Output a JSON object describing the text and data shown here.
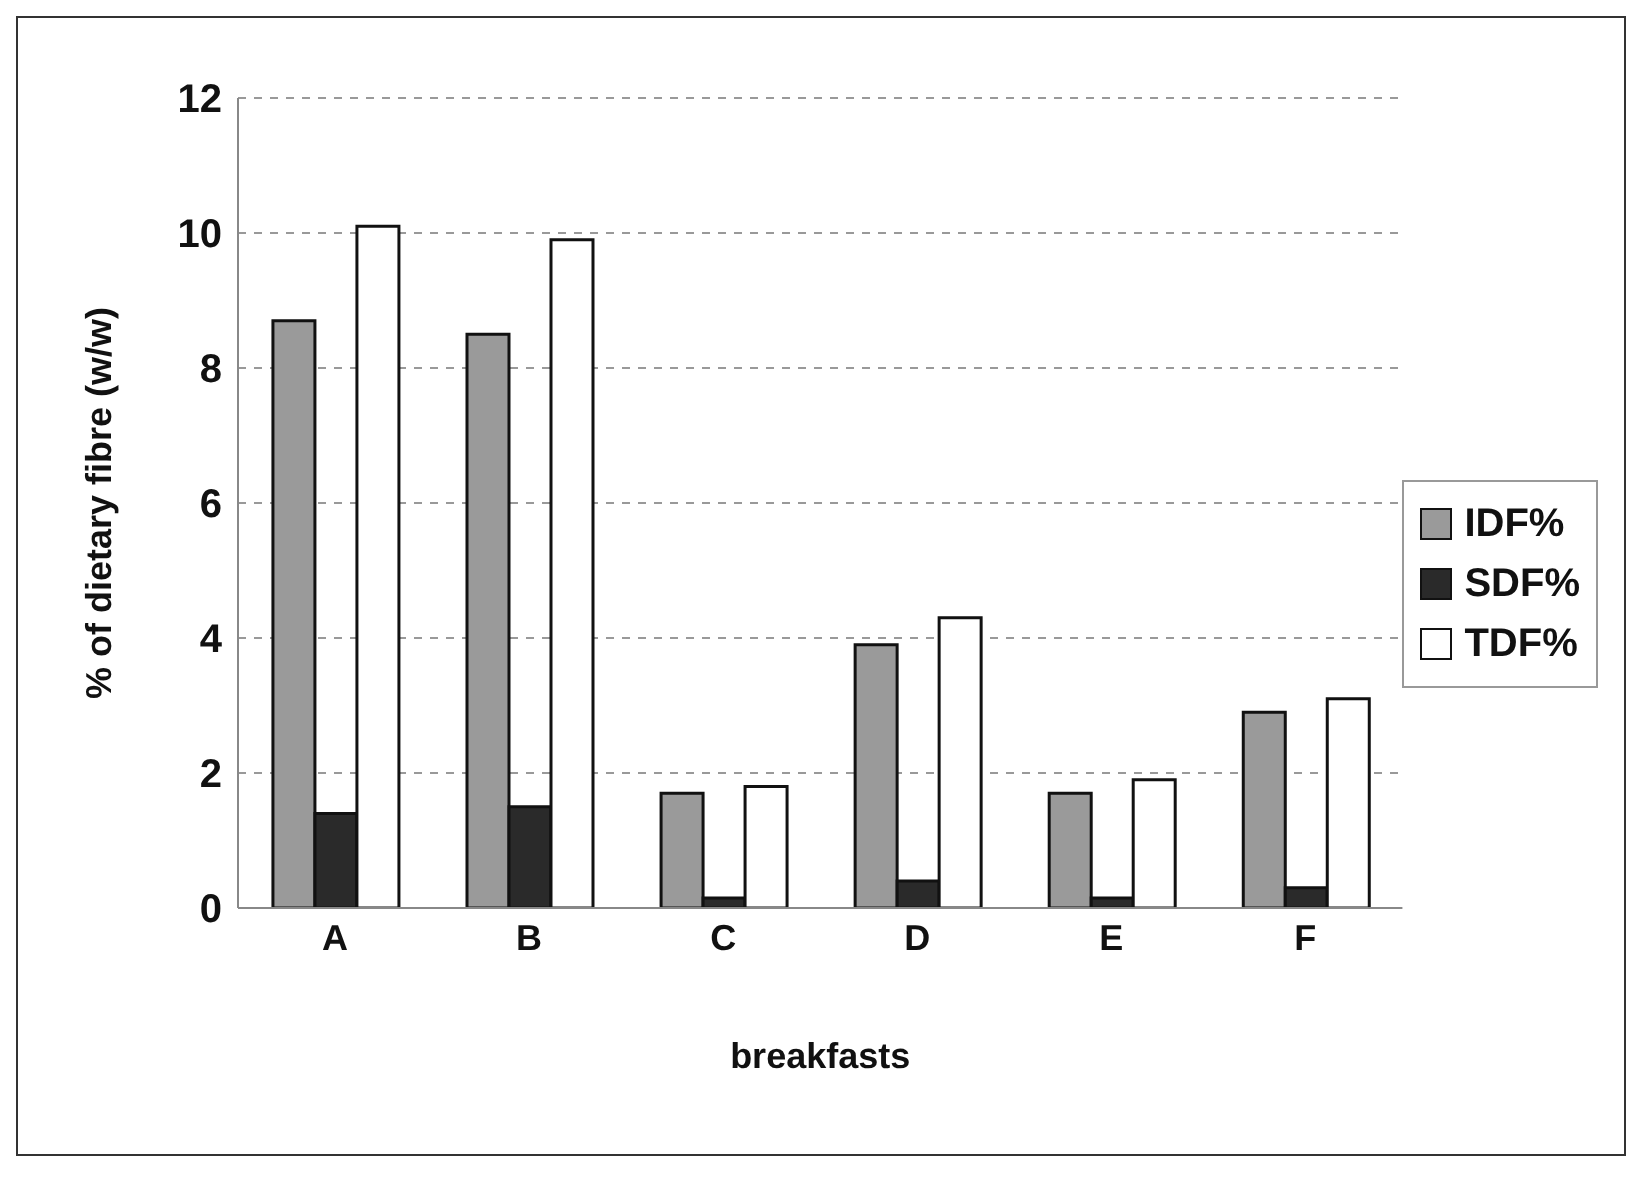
{
  "chart_data": {
    "type": "bar",
    "xlabel": "breakfasts",
    "ylabel": "% of dietary fibre (w/w)",
    "categories": [
      "A",
      "B",
      "C",
      "D",
      "E",
      "F"
    ],
    "series": [
      {
        "name": "IDF%",
        "color": "#9a9a9a",
        "values": [
          8.7,
          8.5,
          1.7,
          3.9,
          1.7,
          2.9
        ]
      },
      {
        "name": "SDF%",
        "color": "#2a2a2a",
        "values": [
          1.4,
          1.5,
          0.15,
          0.4,
          0.15,
          0.3
        ]
      },
      {
        "name": "TDF%",
        "color": "#ffffff",
        "values": [
          10.1,
          9.9,
          1.8,
          4.3,
          1.9,
          3.1
        ]
      }
    ],
    "ylim": [
      0,
      12
    ],
    "yticks": [
      0,
      2,
      4,
      6,
      8,
      10,
      12
    ],
    "grid": "y",
    "legend": "right"
  }
}
